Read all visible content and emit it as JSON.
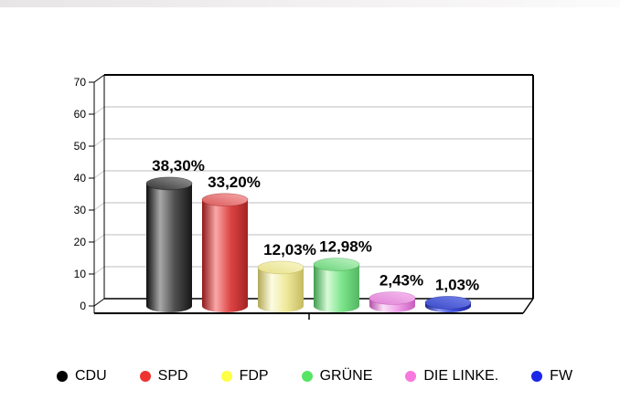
{
  "chart_data": {
    "type": "bar",
    "style": "3d-cylinder",
    "title": "",
    "categories": [
      "CDU",
      "SPD",
      "FDP",
      "GRÜNE",
      "DIE LINKE.",
      "FW"
    ],
    "values": [
      38.3,
      33.2,
      12.03,
      12.98,
      2.43,
      1.03
    ],
    "value_labels": [
      "38,30%",
      "33,20%",
      "12,03%",
      "12,98%",
      "2,43%",
      "1,03%"
    ],
    "ylim": [
      0,
      70
    ],
    "ytick_labels": [
      "0",
      "10",
      "20",
      "30",
      "40",
      "50",
      "60",
      "70"
    ],
    "grid": true,
    "gridline_color": "#c9c9c9",
    "frame_color": "#000000",
    "legend_position": "bottom",
    "legend_colors": [
      "#000000",
      "#ee3333",
      "#ffff44",
      "#57e466",
      "#f878de",
      "#1c27e8"
    ],
    "bar_colors": [
      {
        "edge": "#0d0d0d",
        "highlight": "#a8a8a8",
        "mid": "#4f4f4f",
        "edge2": "#161616",
        "top_from": "#333333",
        "top_to": "#979797"
      },
      {
        "edge": "#8f1818",
        "highlight": "#f9a8a8",
        "mid": "#dd4444",
        "edge2": "#a32424",
        "top_from": "#d85858",
        "top_to": "#f8aaaa"
      },
      {
        "edge": "#b3a955",
        "highlight": "#fdfbe2",
        "mid": "#efe99c",
        "edge2": "#c5bb60",
        "top_from": "#e5df86",
        "top_to": "#faf7cb"
      },
      {
        "edge": "#3f9e4e",
        "highlight": "#d8fad8",
        "mid": "#7ce58a",
        "edge2": "#55b563",
        "top_from": "#66d276",
        "top_to": "#c0f4c6"
      },
      {
        "edge": "#b24fa8",
        "highlight": "#fbdff8",
        "mid": "#f0a0e8",
        "edge2": "#c75dbd",
        "top_from": "#e080d5",
        "top_to": "#f6bef0"
      },
      {
        "edge": "#1a2384",
        "highlight": "#8f9df5",
        "mid": "#3c4cda",
        "edge2": "#2029a0",
        "top_from": "#3948c8",
        "top_to": "#7583ea"
      }
    ]
  }
}
